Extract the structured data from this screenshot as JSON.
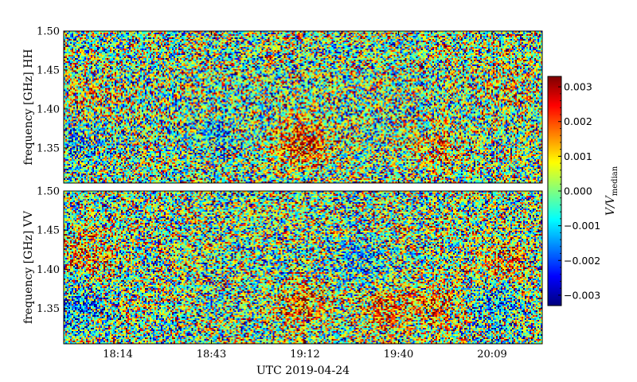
{
  "chart_data": {
    "type": "heatmap",
    "colormap": "jet",
    "colorbar": {
      "label": "V/V",
      "label_sub": "median",
      "min": -0.0033,
      "max": 0.0033,
      "ticks": [
        0.003,
        0.002,
        0.001,
        0.0,
        -0.001,
        -0.002,
        -0.003
      ],
      "tick_labels": [
        "0.003",
        "0.002",
        "0.001",
        "0.000",
        "−0.001",
        "−0.002",
        "−0.003"
      ]
    },
    "x_axis": {
      "label": "UTC 2019-04-24",
      "tick_labels": [
        "18:14",
        "18:43",
        "19:12",
        "19:40",
        "20:09"
      ]
    },
    "panels": [
      {
        "ylabel": "frequency [GHz] HH",
        "ylim": [
          1.305,
          1.5
        ],
        "y_ticks": [
          1.5,
          1.45,
          1.4,
          1.35
        ],
        "y_tick_labels": [
          "1.50",
          "1.45",
          "1.40",
          "1.35"
        ],
        "features": [
          {
            "t": 0.5,
            "f": 1.355,
            "level": 0.0025
          },
          {
            "t": 0.78,
            "f": 1.35,
            "level": 0.0012
          },
          {
            "t": 0.05,
            "f": 1.42,
            "level": 0.001
          },
          {
            "t": 0.92,
            "f": 1.43,
            "level": 0.0009
          },
          {
            "t": 0.03,
            "f": 1.35,
            "level": -0.001
          },
          {
            "t": 0.33,
            "f": 1.36,
            "level": -0.001
          }
        ]
      },
      {
        "ylabel": "frequency [GHz] VV",
        "ylim": [
          1.305,
          1.5
        ],
        "y_ticks": [
          1.5,
          1.45,
          1.4,
          1.35
        ],
        "y_tick_labels": [
          "1.50",
          "1.45",
          "1.40",
          "1.35"
        ],
        "features": [
          {
            "t": 0.5,
            "f": 1.355,
            "level": 0.0018
          },
          {
            "t": 0.67,
            "f": 1.35,
            "level": 0.0018
          },
          {
            "t": 0.78,
            "f": 1.355,
            "level": 0.0015
          },
          {
            "t": 0.92,
            "f": 1.41,
            "level": 0.0014
          },
          {
            "t": 0.05,
            "f": 1.42,
            "level": 0.0014
          },
          {
            "t": 0.04,
            "f": 1.355,
            "level": -0.0015
          },
          {
            "t": 0.62,
            "f": 1.41,
            "level": -0.0012
          },
          {
            "t": 0.9,
            "f": 1.355,
            "level": -0.0013
          }
        ]
      }
    ]
  }
}
